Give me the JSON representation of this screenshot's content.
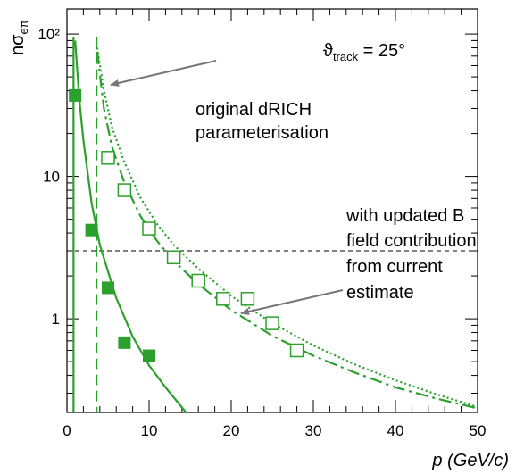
{
  "chart_data": {
    "type": "scatter",
    "title": "",
    "xlabel": "p (GeV/c)",
    "ylabel": "nσeπ",
    "x_scale": "linear",
    "y_scale": "log",
    "xlim": [
      0,
      50
    ],
    "ylim": [
      0.22,
      150
    ],
    "x_ticks": [
      0,
      10,
      20,
      30,
      40,
      50
    ],
    "y_ticks": [
      1,
      10,
      100
    ],
    "y_tick_labels": [
      "1",
      "10",
      "10²"
    ],
    "grid": false,
    "threshold_line_y": 3,
    "vertical_lines_x": [
      0.8,
      3.6
    ],
    "colors": {
      "series": "#2ca02c",
      "annotation": "#777777"
    },
    "series": [
      {
        "points": [
          [
            1,
            37
          ],
          [
            3,
            4.2
          ],
          [
            5,
            1.65
          ],
          [
            7,
            0.68
          ],
          [
            10,
            0.55
          ]
        ],
        "marker": "filled-square"
      },
      {
        "points": [
          [
            5,
            13.5
          ],
          [
            7,
            8
          ],
          [
            10,
            4.3
          ],
          [
            13,
            2.7
          ],
          [
            16,
            1.85
          ],
          [
            19,
            1.38
          ],
          [
            22,
            1.38
          ],
          [
            25,
            0.93
          ],
          [
            28,
            0.6
          ]
        ],
        "marker": "open-square"
      },
      {
        "style": "solid",
        "points": [
          [
            1.0,
            90
          ],
          [
            1.5,
            35
          ],
          [
            2.0,
            18
          ],
          [
            3.0,
            6.5
          ],
          [
            4.0,
            3.3
          ],
          [
            6.0,
            1.4
          ],
          [
            8.0,
            0.75
          ],
          [
            10.0,
            0.47
          ],
          [
            12.0,
            0.33
          ],
          [
            14.5,
            0.22
          ]
        ]
      },
      {
        "style": "dashed",
        "points": [
          [
            3.7,
            75
          ],
          [
            4.5,
            30
          ],
          [
            5.5,
            16
          ],
          [
            7,
            9
          ],
          [
            9,
            5.2
          ],
          [
            11,
            3.5
          ],
          [
            13,
            2.55
          ],
          [
            16,
            1.75
          ],
          [
            20,
            1.15
          ],
          [
            25,
            0.76
          ],
          [
            30,
            0.55
          ],
          [
            35,
            0.42
          ],
          [
            40,
            0.33
          ],
          [
            45,
            0.275
          ],
          [
            50,
            0.235
          ]
        ]
      },
      {
        "style": "dotted",
        "points": [
          [
            3.7,
            80
          ],
          [
            4.5,
            40
          ],
          [
            5.5,
            22
          ],
          [
            7,
            12.5
          ],
          [
            9,
            7
          ],
          [
            11,
            4.6
          ],
          [
            13,
            3.3
          ],
          [
            16,
            2.25
          ],
          [
            20,
            1.45
          ],
          [
            25,
            0.93
          ],
          [
            30,
            0.65
          ],
          [
            35,
            0.48
          ],
          [
            40,
            0.37
          ],
          [
            45,
            0.295
          ],
          [
            50,
            0.24
          ]
        ]
      }
    ],
    "annotations": {
      "theta": "ϑtrack = 25°",
      "original_line1": "original dRICH",
      "original_line2": "parameterisation",
      "updated_line1": "with updated B",
      "updated_line2": "field contribution",
      "updated_line3": "from current",
      "updated_line4": "estimate"
    }
  }
}
